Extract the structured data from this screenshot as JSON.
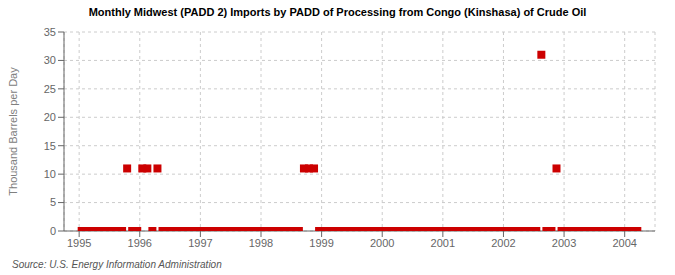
{
  "chart_data": {
    "type": "scatter",
    "title": "Monthly Midwest (PADD 2) Imports by PADD of Processing from Congo (Kinshasa) of Crude Oil",
    "ylabel": "Thousand Barrels per Day",
    "annotations": [
      "Source: U.S. Energy Information Administration"
    ],
    "color": "#cc0000",
    "marker": "square",
    "grid": true,
    "xlim": [
      1994.75,
      2004.5
    ],
    "xticks": [
      1995,
      1996,
      1997,
      1998,
      1999,
      2000,
      2001,
      2002,
      2003,
      2004
    ],
    "ylim": [
      0,
      35
    ],
    "yticks": [
      0,
      5,
      10,
      15,
      20,
      25,
      30,
      35
    ],
    "x": [
      1995.0417,
      1995.125,
      1995.2083,
      1995.2917,
      1995.375,
      1995.4583,
      1995.5417,
      1995.625,
      1995.7083,
      1995.7917,
      1995.875,
      1995.9583,
      1996.0417,
      1996.125,
      1996.2083,
      1996.2917,
      1996.375,
      1996.4583,
      1996.5417,
      1996.625,
      1996.7083,
      1996.7917,
      1996.875,
      1996.9583,
      1997.0417,
      1997.125,
      1997.2083,
      1997.2917,
      1997.375,
      1997.4583,
      1997.5417,
      1997.625,
      1997.7083,
      1997.7917,
      1997.875,
      1997.9583,
      1998.0417,
      1998.125,
      1998.2083,
      1998.2917,
      1998.375,
      1998.4583,
      1998.5417,
      1998.625,
      1998.7083,
      1998.7917,
      1998.875,
      1998.9583,
      1999.0417,
      1999.125,
      1999.2083,
      1999.2917,
      1999.375,
      1999.4583,
      1999.5417,
      1999.625,
      1999.7083,
      1999.7917,
      1999.875,
      1999.9583,
      2000.0417,
      2000.125,
      2000.2083,
      2000.2917,
      2000.375,
      2000.4583,
      2000.5417,
      2000.625,
      2000.7083,
      2000.7917,
      2000.875,
      2000.9583,
      2001.0417,
      2001.125,
      2001.2083,
      2001.2917,
      2001.375,
      2001.4583,
      2001.5417,
      2001.625,
      2001.7083,
      2001.7917,
      2001.875,
      2001.9583,
      2002.0417,
      2002.125,
      2002.2083,
      2002.2917,
      2002.375,
      2002.4583,
      2002.5417,
      2002.625,
      2002.7083,
      2002.7917,
      2002.875,
      2002.9583,
      2003.0417,
      2003.125,
      2003.2083,
      2003.2917,
      2003.375,
      2003.4583,
      2003.5417,
      2003.625,
      2003.7083,
      2003.7917,
      2003.875,
      2003.9583,
      2004.0417,
      2004.125,
      2004.2083
    ],
    "values": [
      0,
      0,
      0,
      0,
      0,
      0,
      0,
      0,
      0,
      11,
      0,
      0,
      11,
      11,
      0,
      11,
      0,
      0,
      0,
      0,
      0,
      0,
      0,
      0,
      0,
      0,
      0,
      0,
      0,
      0,
      0,
      0,
      0,
      0,
      0,
      0,
      0,
      0,
      0,
      0,
      0,
      0,
      0,
      0,
      11,
      11,
      11,
      0,
      0,
      0,
      0,
      0,
      0,
      0,
      0,
      0,
      0,
      0,
      0,
      0,
      0,
      0,
      0,
      0,
      0,
      0,
      0,
      0,
      0,
      0,
      0,
      0,
      0,
      0,
      0,
      0,
      0,
      0,
      0,
      0,
      0,
      0,
      0,
      0,
      0,
      0,
      0,
      0,
      0,
      0,
      0,
      31,
      0,
      0,
      11,
      0,
      0,
      0,
      0,
      0,
      0,
      0,
      0,
      0,
      0,
      0,
      0,
      0,
      0,
      0,
      0
    ]
  }
}
